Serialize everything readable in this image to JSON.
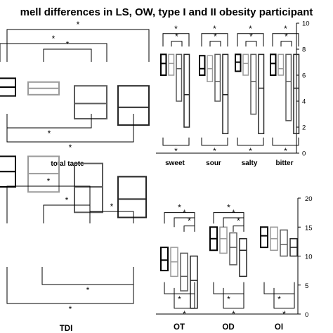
{
  "header": {
    "title": "mell differences in LS, OW, type I and II obesity participant"
  },
  "colors": {
    "LS": "#000000",
    "OW": "#9a9a9a",
    "ObI": "#5a5a5a",
    "ObII": "#262626",
    "star": "#000000"
  },
  "chart_data": [
    {
      "id": "total_taste",
      "type": "box",
      "category": "total taste",
      "groups": [
        "LS",
        "OW",
        "type I",
        "type II"
      ],
      "boxes": [
        {
          "group": "LS",
          "q1": 3.8,
          "median": 4.5,
          "q3": 5.2
        },
        {
          "group": "OW",
          "q1": 3.9,
          "median": 4.4,
          "q3": 4.9
        },
        {
          "group": "type I",
          "q1": 2.0,
          "median": 3.2,
          "q3": 4.6
        },
        {
          "group": "type II",
          "q1": 1.5,
          "median": 2.9,
          "q3": 4.6
        }
      ],
      "significance": [
        "*",
        "*",
        "*",
        "*",
        "*"
      ]
    },
    {
      "id": "taste_qualities",
      "type": "box",
      "categories": [
        "sweet",
        "sour",
        "salty",
        "bitter"
      ],
      "y_ticks": [
        0,
        2,
        4,
        6,
        8,
        10
      ],
      "ylim": [
        0,
        10
      ],
      "series": [
        {
          "group": "LS",
          "boxes": [
            {
              "q1": 6.0,
              "median": 6.9,
              "q3": 7.6
            },
            {
              "q1": 6.0,
              "median": 6.5,
              "q3": 7.5
            },
            {
              "q1": 6.3,
              "median": 7.0,
              "q3": 7.6
            },
            {
              "q1": 6.0,
              "median": 6.9,
              "q3": 7.6
            }
          ]
        },
        {
          "group": "OW",
          "boxes": [
            {
              "q1": 6.0,
              "median": 6.9,
              "q3": 7.6
            },
            {
              "q1": 5.5,
              "median": 6.5,
              "q3": 7.5
            },
            {
              "q1": 6.0,
              "median": 6.9,
              "q3": 7.6
            },
            {
              "q1": 6.0,
              "median": 6.5,
              "q3": 7.6
            }
          ]
        },
        {
          "group": "type I",
          "boxes": [
            {
              "q1": 4.0,
              "median": 6.5,
              "q3": 7.6
            },
            {
              "q1": 4.0,
              "median": 5.5,
              "q3": 7.6
            },
            {
              "q1": 3.0,
              "median": 5.5,
              "q3": 7.6
            },
            {
              "q1": 2.5,
              "median": 5.5,
              "q3": 7.6
            }
          ]
        },
        {
          "group": "type II",
          "boxes": [
            {
              "q1": 2.0,
              "median": 4.5,
              "q3": 7.6
            },
            {
              "q1": 1.5,
              "median": 4.5,
              "q3": 7.6
            },
            {
              "q1": 1.5,
              "median": 5.0,
              "q3": 7.6
            },
            {
              "q1": 1.5,
              "median": 5.0,
              "q3": 7.6
            }
          ]
        }
      ],
      "significance_marks": 18
    },
    {
      "id": "tdi",
      "type": "box",
      "category": "TDI",
      "groups": [
        "LS",
        "OW",
        "type I",
        "type II"
      ],
      "boxes": [
        {
          "group": "LS",
          "q1": 12.0,
          "median": 13.5,
          "q3": 15.0
        },
        {
          "group": "OW",
          "q1": 11.5,
          "median": 13.3,
          "q3": 15.0
        },
        {
          "group": "type I",
          "q1": 9.5,
          "median": 12.0,
          "q3": 14.3
        },
        {
          "group": "type II",
          "q1": 9.0,
          "median": 10.8,
          "q3": 13.0
        }
      ],
      "significance": [
        "*",
        "*",
        "*",
        "*",
        "*",
        "*"
      ]
    },
    {
      "id": "olfactory_subtests",
      "type": "box",
      "categories": [
        "OT",
        "OD",
        "OI"
      ],
      "y_ticks": [
        0,
        5,
        10,
        15,
        20
      ],
      "ylim": [
        0,
        20
      ],
      "series": [
        {
          "group": "LS",
          "boxes": [
            {
              "q1": 7.5,
              "median": 9.3,
              "q3": 11.5
            },
            {
              "q1": 11.0,
              "median": 13.0,
              "q3": 15.0
            },
            {
              "q1": 11.5,
              "median": 13.5,
              "q3": 15.0
            }
          ]
        },
        {
          "group": "OW",
          "boxes": [
            {
              "q1": 6.5,
              "median": 9.0,
              "q3": 11.5
            },
            {
              "q1": 10.5,
              "median": 13.0,
              "q3": 15.0
            },
            {
              "q1": 11.0,
              "median": 13.0,
              "q3": 15.0
            }
          ]
        },
        {
          "group": "type I",
          "boxes": [
            {
              "q1": 4.0,
              "median": 6.5,
              "q3": 10.5
            },
            {
              "q1": 8.5,
              "median": 11.5,
              "q3": 14.0
            },
            {
              "q1": 10.0,
              "median": 12.0,
              "q3": 14.5
            }
          ]
        },
        {
          "group": "type II",
          "boxes": [
            {
              "q1": 1.0,
              "median": 5.8,
              "q3": 10.0
            },
            {
              "q1": 6.5,
              "median": 11.0,
              "q3": 13.0
            },
            {
              "q1": 10.0,
              "median": 11.5,
              "q3": 13.0
            }
          ]
        }
      ],
      "significance_marks": 12
    }
  ]
}
